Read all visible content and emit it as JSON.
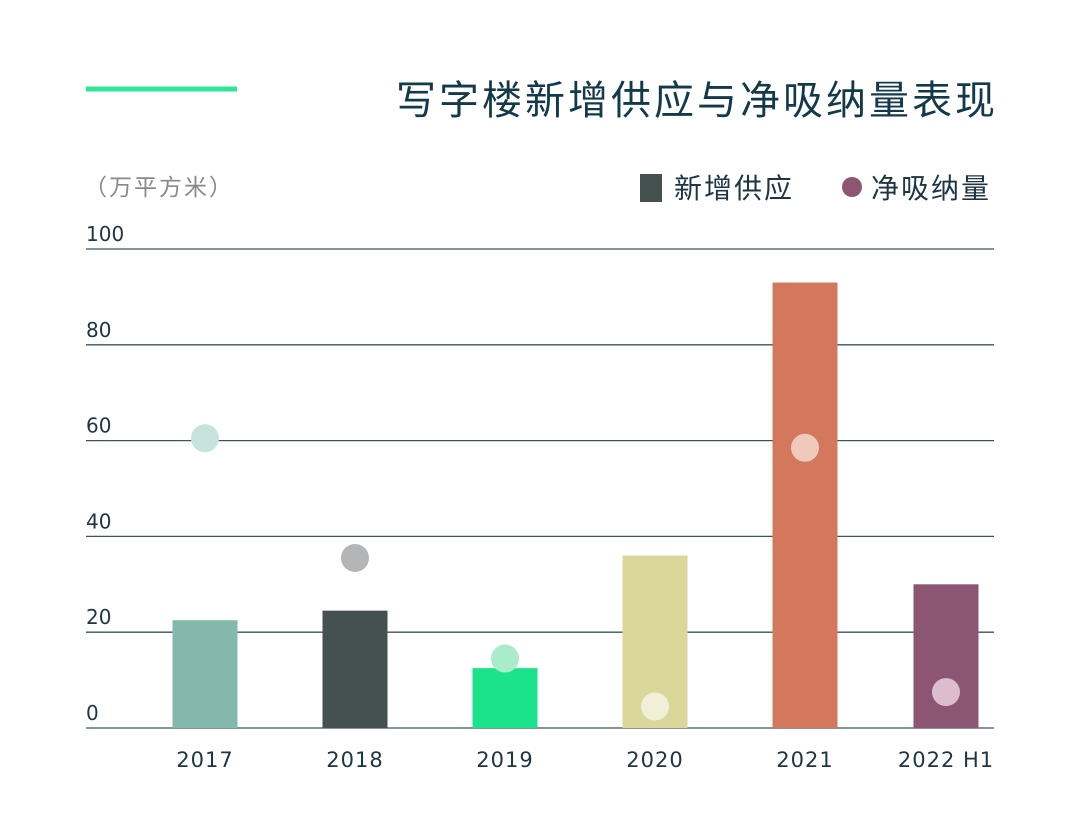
{
  "chart_data": {
    "type": "bar",
    "title": "写字楼新增供应与净吸纳量表现",
    "unit_label": "（万平方米）",
    "categories": [
      "2017",
      "2018",
      "2019",
      "2020",
      "2021",
      "2022 H1"
    ],
    "series": [
      {
        "name": "新增供应",
        "type": "bar",
        "legend_color": "#44514f",
        "values": [
          22.5,
          24.5,
          12.5,
          36,
          93,
          30
        ],
        "bar_colors": [
          "#84b8ac",
          "#44514f",
          "#1de28c",
          "#dad79b",
          "#d4785d",
          "#8c5673"
        ]
      },
      {
        "name": "净吸纳量",
        "type": "scatter",
        "legend_color": "#8c5673",
        "values": [
          60.5,
          35.5,
          14.5,
          4.5,
          58.5,
          7.5
        ],
        "point_colors": [
          "#c7e4dc",
          "#b4b5b6",
          "#a8ecc9",
          "#f1efd6",
          "#efcabb",
          "#dcbdce"
        ]
      }
    ],
    "ylim": [
      0,
      100
    ],
    "yticks": [
      0,
      20,
      40,
      60,
      80,
      100
    ],
    "grid": true,
    "legend_position": "top-right",
    "title_accent_color": "#2ee898"
  }
}
